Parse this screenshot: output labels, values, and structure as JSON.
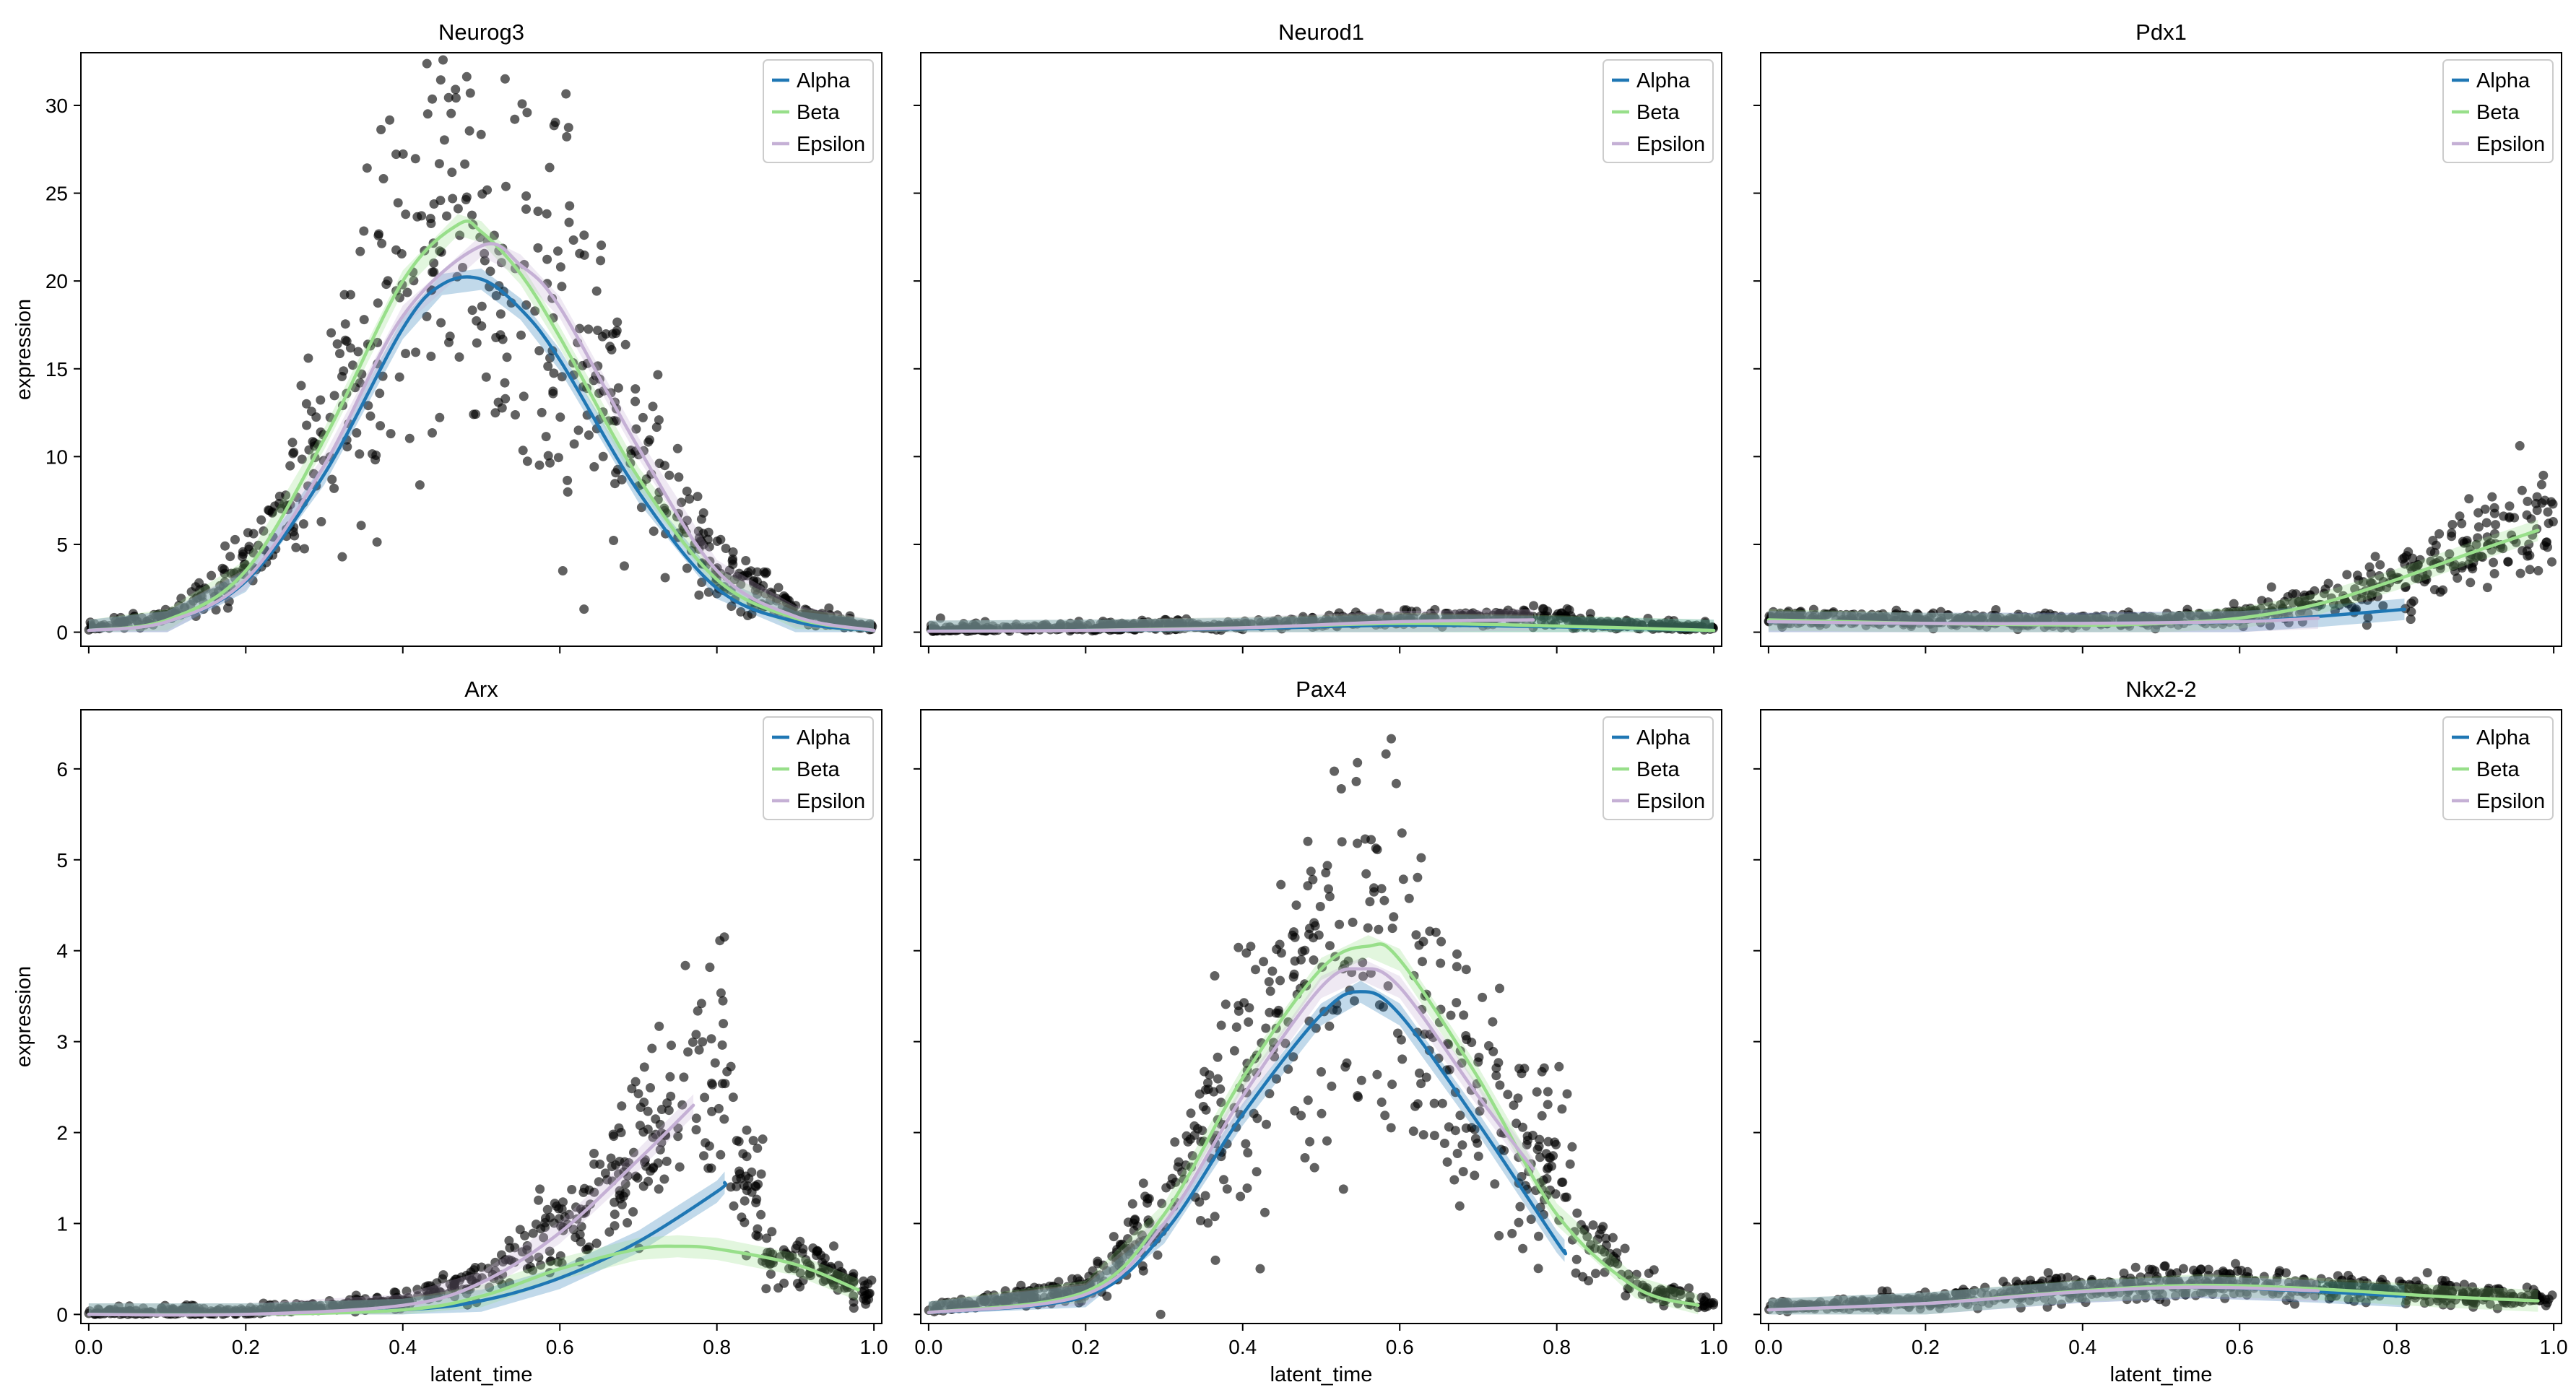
{
  "figure": {
    "xlabel": "latent_time",
    "ylabel": "expression",
    "legend": {
      "placement": "top-right",
      "entries": [
        "Alpha",
        "Beta",
        "Epsilon"
      ]
    }
  },
  "colors": {
    "Alpha": "#1f77b4",
    "Beta": "#98df8a",
    "Epsilon": "#c5b0d5",
    "points": "#000000"
  },
  "chart_data": [
    {
      "type": "scatter",
      "title": "Neurog3",
      "xlabel": "",
      "ylabel": "expression",
      "xlim": [
        -0.01,
        1.01
      ],
      "ylim": [
        -0.8,
        33
      ],
      "xticks": [
        0.0,
        0.2,
        0.4,
        0.6,
        0.8,
        1.0
      ],
      "show_xticklabels": false,
      "yticks": [
        0,
        5,
        10,
        15,
        20,
        25,
        30
      ],
      "show_yticklabels": true,
      "legend": "top-right",
      "series": [
        {
          "name": "Alpha",
          "x": [
            0.0,
            0.1,
            0.2,
            0.3,
            0.4,
            0.45,
            0.5,
            0.55,
            0.6,
            0.7,
            0.8,
            0.9,
            1.0
          ],
          "y": [
            0.1,
            0.6,
            2.9,
            9.0,
            17.3,
            19.8,
            20.1,
            18.4,
            15.5,
            8.0,
            2.5,
            0.6,
            0.1
          ]
        },
        {
          "name": "Beta",
          "x": [
            0.0,
            0.1,
            0.2,
            0.3,
            0.4,
            0.47,
            0.5,
            0.55,
            0.6,
            0.7,
            0.8,
            0.9,
            1.0
          ],
          "y": [
            0.1,
            0.7,
            3.5,
            11.0,
            20.0,
            23.2,
            22.8,
            20.4,
            16.8,
            8.8,
            3.0,
            0.8,
            0.1
          ]
        },
        {
          "name": "Epsilon",
          "x": [
            0.0,
            0.1,
            0.2,
            0.3,
            0.4,
            0.5,
            0.55,
            0.6,
            0.7,
            0.8,
            0.9,
            1.0
          ],
          "y": [
            0.1,
            0.6,
            3.0,
            9.5,
            18.0,
            22.0,
            20.9,
            18.5,
            10.5,
            3.5,
            0.9,
            0.1
          ]
        }
      ]
    },
    {
      "type": "scatter",
      "title": "Neurod1",
      "xlabel": "",
      "ylabel": "",
      "xlim": [
        -0.01,
        1.01
      ],
      "ylim": [
        -0.8,
        33
      ],
      "xticks": [
        0.0,
        0.2,
        0.4,
        0.6,
        0.8,
        1.0
      ],
      "show_xticklabels": false,
      "yticks": [
        0,
        5,
        10,
        15,
        20,
        25,
        30
      ],
      "show_yticklabels": false,
      "legend": "top-right",
      "series": [
        {
          "name": "Alpha",
          "x": [
            0.0,
            0.2,
            0.4,
            0.6,
            0.8,
            1.0
          ],
          "y": [
            0.05,
            0.1,
            0.2,
            0.4,
            0.3,
            0.1
          ]
        },
        {
          "name": "Beta",
          "x": [
            0.0,
            0.2,
            0.4,
            0.6,
            0.8,
            1.0
          ],
          "y": [
            0.05,
            0.1,
            0.25,
            0.5,
            0.35,
            0.1
          ]
        },
        {
          "name": "Epsilon",
          "x": [
            0.0,
            0.2,
            0.4,
            0.6,
            0.77
          ],
          "y": [
            0.05,
            0.1,
            0.25,
            0.6,
            0.7
          ]
        }
      ]
    },
    {
      "type": "scatter",
      "title": "Pdx1",
      "xlabel": "",
      "ylabel": "",
      "xlim": [
        -0.01,
        1.01
      ],
      "ylim": [
        -0.8,
        33
      ],
      "xticks": [
        0.0,
        0.2,
        0.4,
        0.6,
        0.8,
        1.0
      ],
      "show_xticklabels": false,
      "yticks": [
        0,
        5,
        10,
        15,
        20,
        25,
        30
      ],
      "show_yticklabels": false,
      "legend": "top-right",
      "series": [
        {
          "name": "Alpha",
          "x": [
            0.0,
            0.2,
            0.4,
            0.6,
            0.7,
            0.81
          ],
          "y": [
            0.6,
            0.5,
            0.5,
            0.6,
            0.9,
            1.3
          ]
        },
        {
          "name": "Beta",
          "x": [
            0.0,
            0.2,
            0.4,
            0.5,
            0.6,
            0.7,
            0.8,
            0.9,
            0.98
          ],
          "y": [
            0.7,
            0.5,
            0.4,
            0.5,
            0.8,
            1.6,
            3.0,
            4.6,
            5.8
          ]
        },
        {
          "name": "Epsilon",
          "x": [
            0.0,
            0.2,
            0.4,
            0.6,
            0.7
          ],
          "y": [
            0.6,
            0.5,
            0.5,
            0.6,
            0.8
          ]
        }
      ]
    },
    {
      "type": "scatter",
      "title": "Arx",
      "xlabel": "latent_time",
      "ylabel": "expression",
      "xlim": [
        -0.01,
        1.01
      ],
      "ylim": [
        -0.1,
        6.65
      ],
      "xticks": [
        0.0,
        0.2,
        0.4,
        0.6,
        0.8,
        1.0
      ],
      "show_xticklabels": true,
      "yticks": [
        0,
        1,
        2,
        3,
        4,
        5,
        6
      ],
      "show_yticklabels": true,
      "legend": "top-right",
      "series": [
        {
          "name": "Alpha",
          "x": [
            0.0,
            0.2,
            0.4,
            0.5,
            0.6,
            0.7,
            0.8,
            0.81
          ],
          "y": [
            0.0,
            0.0,
            0.05,
            0.15,
            0.4,
            0.8,
            1.35,
            1.45
          ]
        },
        {
          "name": "Beta",
          "x": [
            0.0,
            0.2,
            0.4,
            0.5,
            0.6,
            0.7,
            0.75,
            0.8,
            0.9,
            0.98
          ],
          "y": [
            0.0,
            0.0,
            0.05,
            0.2,
            0.5,
            0.72,
            0.75,
            0.72,
            0.55,
            0.27
          ]
        },
        {
          "name": "Epsilon",
          "x": [
            0.0,
            0.2,
            0.4,
            0.5,
            0.6,
            0.7,
            0.77
          ],
          "y": [
            0.0,
            0.0,
            0.1,
            0.35,
            0.9,
            1.7,
            2.3
          ]
        }
      ]
    },
    {
      "type": "scatter",
      "title": "Pax4",
      "xlabel": "latent_time",
      "ylabel": "",
      "xlim": [
        -0.01,
        1.01
      ],
      "ylim": [
        -0.1,
        6.65
      ],
      "xticks": [
        0.0,
        0.2,
        0.4,
        0.6,
        0.8,
        1.0
      ],
      "show_xticklabels": true,
      "yticks": [
        0,
        1,
        2,
        3,
        4,
        5,
        6
      ],
      "show_yticklabels": false,
      "legend": "top-right",
      "series": [
        {
          "name": "Alpha",
          "x": [
            0.0,
            0.2,
            0.3,
            0.4,
            0.5,
            0.55,
            0.6,
            0.7,
            0.8,
            0.81
          ],
          "y": [
            0.02,
            0.2,
            0.9,
            2.2,
            3.3,
            3.55,
            3.3,
            2.1,
            0.8,
            0.7
          ]
        },
        {
          "name": "Beta",
          "x": [
            0.0,
            0.2,
            0.3,
            0.4,
            0.5,
            0.56,
            0.6,
            0.7,
            0.8,
            0.9,
            0.98
          ],
          "y": [
            0.02,
            0.25,
            1.1,
            2.6,
            3.8,
            4.05,
            3.9,
            2.6,
            1.1,
            0.3,
            0.1
          ]
        },
        {
          "name": "Epsilon",
          "x": [
            0.0,
            0.2,
            0.3,
            0.4,
            0.5,
            0.55,
            0.6,
            0.7,
            0.77
          ],
          "y": [
            0.02,
            0.22,
            1.0,
            2.4,
            3.6,
            3.8,
            3.6,
            2.4,
            1.6
          ]
        }
      ]
    },
    {
      "type": "scatter",
      "title": "Nkx2-2",
      "xlabel": "latent_time",
      "ylabel": "",
      "xlim": [
        -0.01,
        1.01
      ],
      "ylim": [
        -0.1,
        6.65
      ],
      "xticks": [
        0.0,
        0.2,
        0.4,
        0.6,
        0.8,
        1.0
      ],
      "show_xticklabels": true,
      "yticks": [
        0,
        1,
        2,
        3,
        4,
        5,
        6
      ],
      "show_yticklabels": false,
      "legend": "top-right",
      "series": [
        {
          "name": "Alpha",
          "x": [
            0.0,
            0.2,
            0.4,
            0.55,
            0.7,
            0.81
          ],
          "y": [
            0.05,
            0.12,
            0.25,
            0.3,
            0.25,
            0.2
          ]
        },
        {
          "name": "Beta",
          "x": [
            0.0,
            0.2,
            0.4,
            0.55,
            0.7,
            0.85,
            0.98
          ],
          "y": [
            0.05,
            0.12,
            0.26,
            0.32,
            0.28,
            0.2,
            0.15
          ]
        },
        {
          "name": "Epsilon",
          "x": [
            0.0,
            0.2,
            0.4,
            0.55,
            0.7
          ],
          "y": [
            0.05,
            0.12,
            0.25,
            0.3,
            0.26
          ]
        }
      ]
    }
  ]
}
